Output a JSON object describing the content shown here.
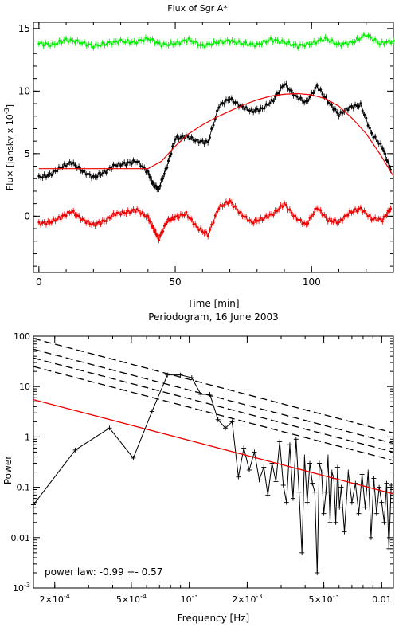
{
  "chart_data": [
    {
      "type": "scatter",
      "title": "Flux of Sgr A*",
      "xlabel": "Time [min]",
      "ylabel": "Flux [jansky x 10^-3]",
      "xlim": [
        -2,
        130
      ],
      "ylim": [
        -4.5,
        15.5
      ],
      "xticks": [
        0,
        50,
        100
      ],
      "yticks": [
        0,
        5,
        10,
        15
      ],
      "grid": false,
      "series": [
        {
          "color": "#00ee00",
          "marker": "points-with-errorbars",
          "x": [
            0,
            5,
            10,
            15,
            20,
            25,
            30,
            35,
            40,
            45,
            50,
            55,
            60,
            65,
            70,
            75,
            80,
            85,
            90,
            95,
            100,
            105,
            110,
            115,
            120,
            125,
            130
          ],
          "y": [
            13.8,
            13.7,
            14.1,
            13.9,
            13.6,
            13.8,
            14.0,
            13.9,
            14.2,
            13.7,
            13.8,
            14.1,
            13.6,
            13.9,
            14.0,
            13.8,
            13.7,
            14.1,
            13.9,
            13.6,
            13.8,
            14.2,
            13.7,
            13.9,
            14.5,
            13.8,
            14.0
          ]
        },
        {
          "color": "#000000",
          "marker": "points-with-errorbars",
          "x": [
            0,
            4,
            8,
            12,
            16,
            20,
            24,
            28,
            32,
            36,
            40,
            42,
            44,
            47,
            50,
            54,
            58,
            62,
            66,
            70,
            74,
            78,
            82,
            86,
            90,
            94,
            98,
            102,
            106,
            110,
            114,
            118,
            122,
            126,
            129
          ],
          "y": [
            3.1,
            3.3,
            3.9,
            4.3,
            3.6,
            3.1,
            3.5,
            4.1,
            4.2,
            4.4,
            3.5,
            2.5,
            2.2,
            4.0,
            6.2,
            6.4,
            6.0,
            5.9,
            8.8,
            9.4,
            8.8,
            8.4,
            8.6,
            9.3,
            10.6,
            9.6,
            9.1,
            10.4,
            9.2,
            8.1,
            8.7,
            8.9,
            6.6,
            5.5,
            3.7
          ]
        },
        {
          "color": "#ee0000",
          "marker": "points-with-errorbars",
          "x": [
            0,
            4,
            8,
            12,
            16,
            20,
            24,
            28,
            32,
            36,
            40,
            42,
            44,
            47,
            50,
            54,
            58,
            62,
            66,
            70,
            74,
            78,
            82,
            86,
            90,
            94,
            98,
            102,
            106,
            110,
            114,
            118,
            122,
            126,
            129
          ],
          "y": [
            -0.6,
            -0.5,
            -0.1,
            0.4,
            -0.3,
            -0.7,
            -0.4,
            0.2,
            0.3,
            0.5,
            -0.1,
            -1.0,
            -1.8,
            -0.4,
            -0.1,
            0.2,
            -0.9,
            -1.5,
            0.7,
            1.2,
            0.2,
            -0.5,
            -0.2,
            0.2,
            1.0,
            -0.1,
            -0.7,
            0.7,
            -0.3,
            -0.5,
            0.3,
            0.6,
            -0.2,
            -0.3,
            0.6
          ]
        },
        {
          "color": "#ee0000",
          "marker": "line",
          "x": [
            0,
            40,
            45,
            50,
            55,
            60,
            65,
            70,
            75,
            80,
            85,
            90,
            95,
            100,
            105,
            110,
            115,
            120,
            125,
            130
          ],
          "y": [
            3.8,
            3.8,
            4.4,
            5.6,
            6.6,
            7.3,
            7.9,
            8.4,
            8.9,
            9.3,
            9.6,
            9.75,
            9.8,
            9.7,
            9.4,
            8.8,
            7.8,
            6.6,
            5.0,
            3.2
          ]
        }
      ]
    },
    {
      "type": "line",
      "title": "Periodogram, 16 June 2003",
      "xlabel": "Frequency [Hz]",
      "ylabel": "Power",
      "xscale": "log",
      "yscale": "log",
      "xlim": [
        0.000155,
        0.0115
      ],
      "ylim": [
        0.001,
        100
      ],
      "xtick_labels": [
        "2x10^-4",
        "5x10^-4",
        "10^-3",
        "2x10^-3",
        "5x10^-3",
        "0.01"
      ],
      "ytick_labels": [
        "10^-3",
        "0.01",
        "0.1",
        "1",
        "10",
        "100"
      ],
      "annotation": "power law: -0.99 +- 0.57",
      "series": [
        {
          "color": "#000000",
          "marker": "line-with-plus",
          "x": [
            0.000155,
            0.000256,
            0.000385,
            0.000512,
            0.00064,
            0.00077,
            0.0009,
            0.00103,
            0.00115,
            0.00128,
            0.00141,
            0.00154,
            0.00167,
            0.0018,
            0.00192,
            0.00205,
            0.00218,
            0.00231,
            0.00244,
            0.00256,
            0.00269,
            0.00282,
            0.00295,
            0.00308,
            0.0032,
            0.00333,
            0.00346,
            0.00359,
            0.00372,
            0.00385,
            0.00397,
            0.0041,
            0.00423,
            0.00436,
            0.00449,
            0.00462,
            0.00474,
            0.00487,
            0.005,
            0.00513,
            0.00526,
            0.00539,
            0.00551,
            0.00564,
            0.00577,
            0.0059,
            0.00603,
            0.00616,
            0.0064,
            0.0067,
            0.007,
            0.0073,
            0.0076,
            0.0079,
            0.0082,
            0.0085,
            0.0088,
            0.0091,
            0.0094,
            0.0097,
            0.01,
            0.0103,
            0.0106,
            0.0109,
            0.0112
          ],
          "y": [
            0.045,
            0.55,
            1.5,
            0.38,
            3.2,
            17,
            17,
            15,
            7,
            7,
            2.2,
            1.5,
            2.0,
            0.16,
            0.6,
            0.22,
            0.5,
            0.14,
            0.25,
            0.07,
            0.3,
            0.13,
            0.8,
            0.11,
            0.05,
            0.7,
            0.06,
            0.9,
            0.08,
            0.005,
            0.4,
            0.05,
            0.3,
            0.12,
            0.08,
            0.002,
            0.3,
            0.2,
            0.03,
            0.08,
            0.4,
            0.02,
            0.2,
            0.15,
            0.02,
            0.25,
            0.04,
            0.1,
            0.013,
            0.2,
            0.05,
            0.12,
            0.03,
            0.18,
            0.04,
            0.2,
            0.01,
            0.15,
            0.03,
            0.1,
            0.05,
            0.02,
            0.12,
            0.006,
            0.11
          ]
        },
        {
          "color": "#ee0000",
          "marker": "line",
          "x": [
            0.000155,
            0.0115
          ],
          "y": [
            5.5,
            0.074
          ]
        },
        {
          "color": "#000000",
          "marker": "dashed-line",
          "x": [
            0.000155,
            0.0115
          ],
          "y": [
            90,
            1.2
          ]
        },
        {
          "color": "#000000",
          "marker": "dashed-line",
          "x": [
            0.000155,
            0.0115
          ],
          "y": [
            55,
            0.74
          ]
        },
        {
          "color": "#000000",
          "marker": "dashed-line",
          "x": [
            0.000155,
            0.0115
          ],
          "y": [
            37,
            0.5
          ]
        },
        {
          "color": "#000000",
          "marker": "dashed-line",
          "x": [
            0.000155,
            0.0115
          ],
          "y": [
            25,
            0.34
          ]
        }
      ]
    }
  ]
}
